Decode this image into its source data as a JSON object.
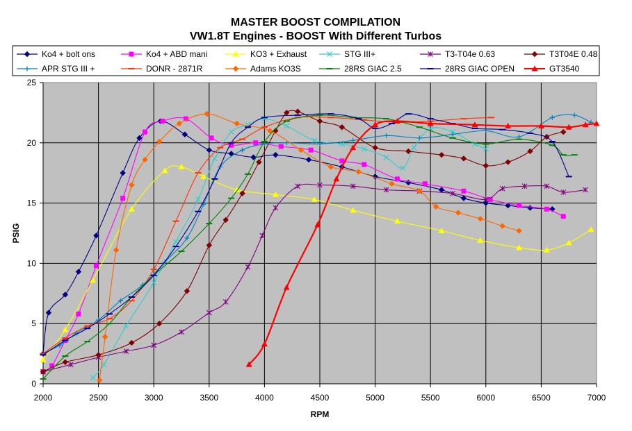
{
  "chart_data": {
    "type": "line",
    "title": "MASTER BOOST COMPILATION",
    "subtitle": "VW1.8T Engines - BOOST With Different Turbos",
    "xlabel": "RPM",
    "ylabel": "PSIG",
    "xlim": [
      2000,
      7000
    ],
    "ylim": [
      0,
      25
    ],
    "xticks": [
      2000,
      2500,
      3000,
      3500,
      4000,
      4500,
      5000,
      5500,
      6000,
      6500,
      7000
    ],
    "yticks": [
      0,
      5,
      10,
      15,
      20,
      25
    ],
    "grid": true,
    "plot_background": "#c0c0c0",
    "legend_position": "top",
    "series": [
      {
        "name": "Ko4 + bolt ons",
        "color": "#000080",
        "marker": "diamond",
        "x": [
          2000,
          2050,
          2200,
          2320,
          2480,
          2720,
          2870,
          3060,
          3280,
          3500,
          3700,
          3900,
          4100,
          4400,
          4700,
          5000,
          5300,
          5600,
          5800,
          6000,
          6200,
          6400,
          6600
        ],
        "y": [
          2.5,
          5.9,
          7.4,
          9.3,
          12.3,
          17.5,
          20.4,
          21.8,
          20.7,
          19.4,
          19.1,
          18.8,
          19.0,
          18.6,
          18.0,
          17.2,
          16.7,
          16.1,
          15.4,
          15.0,
          14.8,
          14.6,
          14.5
        ]
      },
      {
        "name": "Ko4 + ABD mani",
        "color": "#ff00ff",
        "marker": "square",
        "x": [
          2000,
          2080,
          2200,
          2320,
          2480,
          2720,
          2920,
          3080,
          3290,
          3520,
          3700,
          3920,
          4150,
          4420,
          4700,
          4900,
          5200,
          5450,
          5800,
          6040,
          6300,
          6550,
          6700
        ],
        "y": [
          1.0,
          1.5,
          3.6,
          5.8,
          9.8,
          15.4,
          20.9,
          21.8,
          22.0,
          20.4,
          19.8,
          20.0,
          19.7,
          19.4,
          18.5,
          18.2,
          17.0,
          16.6,
          16.0,
          15.3,
          14.8,
          14.5,
          13.9
        ]
      },
      {
        "name": "KO3 + Exhaust",
        "color": "#ffff00",
        "marker": "triangle",
        "x": [
          2000,
          2200,
          2450,
          2800,
          3100,
          3250,
          3450,
          3750,
          4100,
          4450,
          4800,
          5200,
          5600,
          5950,
          6300,
          6550,
          6750,
          6950
        ],
        "y": [
          2.0,
          4.5,
          8.6,
          14.5,
          17.7,
          18.0,
          17.2,
          16.1,
          15.7,
          15.3,
          14.4,
          13.5,
          12.7,
          11.9,
          11.3,
          11.1,
          11.7,
          12.8
        ]
      },
      {
        "name": "STG III+",
        "color": "#33cccc",
        "marker": "x",
        "x": [
          2450,
          2550,
          2750,
          3000,
          3200,
          3400,
          3550,
          3700,
          3850,
          4000,
          4200,
          4450,
          4700,
          4900,
          5100,
          5250,
          5350,
          5500,
          5700,
          5900,
          6000
        ],
        "y": [
          0.5,
          1.6,
          4.8,
          8.4,
          11.8,
          15.3,
          18.7,
          20.9,
          21.5,
          22.0,
          21.4,
          20.2,
          19.9,
          19.5,
          18.8,
          17.9,
          19.6,
          21.2,
          20.9,
          19.9,
          19.5
        ]
      },
      {
        "name": "T3-T04e 0.63",
        "color": "#800080",
        "marker": "star",
        "x": [
          2000,
          2250,
          2500,
          2750,
          3000,
          3250,
          3500,
          3650,
          3850,
          3980,
          4100,
          4300,
          4500,
          4800,
          5100,
          5400,
          5700,
          6000,
          6150,
          6350,
          6550,
          6700,
          6900
        ],
        "y": [
          1.0,
          1.6,
          2.2,
          2.7,
          3.2,
          4.3,
          5.9,
          6.8,
          9.7,
          12.3,
          14.6,
          16.4,
          16.5,
          16.4,
          16.1,
          16.0,
          15.8,
          15.3,
          16.2,
          16.4,
          16.4,
          15.9,
          16.1
        ]
      },
      {
        "name": "T3T04E 0.48",
        "color": "#800000",
        "marker": "diamond",
        "x": [
          2000,
          2200,
          2500,
          2800,
          3050,
          3300,
          3500,
          3650,
          3800,
          3950,
          4100,
          4200,
          4300,
          4500,
          4700,
          5000,
          5300,
          5600,
          5800,
          6000,
          6200,
          6400,
          6550,
          6700
        ],
        "y": [
          1.0,
          1.8,
          2.4,
          3.4,
          5.0,
          7.7,
          11.5,
          13.6,
          15.8,
          18.4,
          21.0,
          22.5,
          22.6,
          21.8,
          21.3,
          19.6,
          19.3,
          19.0,
          18.7,
          18.1,
          18.4,
          19.3,
          20.5,
          20.9
        ]
      },
      {
        "name": "APR STG III +",
        "color": "#0080c0",
        "marker": "plus",
        "x": [
          2000,
          2150,
          2300,
          2500,
          2700,
          2900,
          3100,
          3300,
          3450,
          3600,
          3800,
          4000,
          4200,
          4500,
          4800,
          5100,
          5400,
          5700,
          6000,
          6300,
          6600,
          6800,
          6950
        ],
        "y": [
          2.5,
          3.2,
          4.2,
          5.3,
          6.9,
          8.2,
          10.1,
          12.1,
          14.9,
          18.0,
          19.4,
          19.9,
          20.0,
          19.9,
          20.2,
          20.6,
          20.4,
          20.7,
          21.0,
          20.5,
          22.1,
          22.3,
          21.7
        ]
      },
      {
        "name": "DONR - 2871R",
        "color": "#ff3300",
        "marker": "dash",
        "x": [
          2000,
          2200,
          2400,
          2600,
          2800,
          3000,
          3200,
          3400,
          3600,
          3800,
          4000,
          4300,
          4600,
          4900,
          5200,
          5500,
          5800,
          6050
        ],
        "y": [
          2.5,
          3.8,
          4.8,
          5.4,
          6.9,
          9.5,
          13.5,
          17.5,
          19.6,
          20.3,
          21.3,
          22.1,
          22.1,
          21.9,
          21.7,
          21.8,
          22.0,
          22.1
        ]
      },
      {
        "name": "Adams KO3S",
        "color": "#ff6600",
        "marker": "diamond",
        "x": [
          2510,
          2560,
          2660,
          2800,
          2920,
          3050,
          3230,
          3480,
          3750,
          4050,
          4330,
          4600,
          4850,
          5150,
          5400,
          5550,
          5750,
          5950,
          6150,
          6300
        ],
        "y": [
          0.3,
          3.9,
          11.1,
          16.5,
          18.6,
          20.1,
          21.6,
          22.4,
          21.6,
          21.0,
          19.4,
          18.0,
          17.6,
          16.6,
          16.0,
          14.7,
          14.2,
          13.7,
          13.1,
          12.7
        ]
      },
      {
        "name": "28RS GIAC 2.5",
        "color": "#008000",
        "marker": "dash",
        "x": [
          2000,
          2200,
          2400,
          2600,
          2800,
          3000,
          3250,
          3500,
          3700,
          3850,
          4000,
          4200,
          4500,
          4800,
          5100,
          5400,
          5700,
          6000,
          6300,
          6600,
          6700,
          6800
        ],
        "y": [
          0.4,
          2.3,
          3.5,
          5.0,
          7.2,
          9.0,
          11.0,
          13.3,
          15.4,
          17.4,
          20.1,
          21.8,
          22.3,
          22.1,
          22.0,
          21.3,
          20.4,
          19.9,
          20.3,
          19.8,
          19.0,
          19.0
        ]
      },
      {
        "name": "28RS GIAC OPEN",
        "color": "#000099",
        "marker": "dash",
        "x": [
          2000,
          2200,
          2400,
          2600,
          2800,
          3000,
          3200,
          3400,
          3550,
          3700,
          3850,
          4000,
          4300,
          4600,
          4850,
          5000,
          5150,
          5300,
          5500,
          5700,
          5900,
          6150,
          6400,
          6600,
          6750
        ],
        "y": [
          2.4,
          3.6,
          4.6,
          5.8,
          7.2,
          9.0,
          11.4,
          14.3,
          17.0,
          20.0,
          21.3,
          22.1,
          22.3,
          22.4,
          22.0,
          21.2,
          21.6,
          22.4,
          22.0,
          21.6,
          21.2,
          21.1,
          20.8,
          20.1,
          17.2
        ]
      },
      {
        "name": "GT3540",
        "color": "#ff0000",
        "marker": "triangle",
        "x": [
          3860,
          4000,
          4200,
          4480,
          4650,
          4800,
          5000,
          5200,
          5500,
          5900,
          6200,
          6500,
          6750,
          6900,
          7000
        ],
        "y": [
          1.6,
          3.3,
          8.0,
          13.2,
          17.0,
          19.6,
          21.5,
          21.8,
          21.6,
          21.5,
          21.4,
          21.4,
          21.3,
          21.5,
          21.6
        ]
      }
    ]
  }
}
